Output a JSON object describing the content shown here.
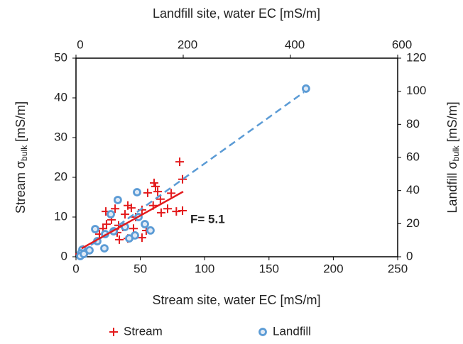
{
  "chart_data": {
    "type": "scatter",
    "xlabel": "Stream site, water EC [mS/m]",
    "x2label": "Landfill site, water EC [mS/m]",
    "ylabel": [
      "Stream σ",
      "bulk",
      " [mS/m]"
    ],
    "y2label": [
      "Landfill σ",
      "bulk",
      " [mS/m]"
    ],
    "xlim": [
      0,
      250
    ],
    "xticks": [
      0,
      50,
      100,
      150,
      200,
      250
    ],
    "x2lim": [
      0,
      600
    ],
    "x2ticks": [
      0,
      200,
      400,
      600
    ],
    "ylim": [
      0,
      50
    ],
    "yticks": [
      0,
      10,
      20,
      30,
      40,
      50
    ],
    "y2lim": [
      0,
      120
    ],
    "y2ticks": [
      0,
      20,
      40,
      60,
      80,
      100,
      120
    ],
    "grid": false,
    "legend": "bottom",
    "series": [
      {
        "name": "Stream",
        "color": "#e31a1c",
        "marker": "plus",
        "x": [
          80.6,
          82.8,
          60.7,
          61.8,
          63.5,
          55.7,
          65.6,
          74,
          60,
          71.2,
          78,
          82.8,
          66.2,
          51.3,
          40.3,
          43,
          38.1,
          46.4,
          23.2,
          30.4,
          27.6,
          23.7,
          33.1,
          36.4,
          44.7,
          54.6,
          51.3,
          33.7,
          40.3,
          32,
          18.2,
          21,
          5.5,
          2.8,
          8.8
        ],
        "values": [
          23.9,
          19.5,
          18.6,
          17.7,
          16.4,
          16.1,
          14.5,
          16,
          12.9,
          12.1,
          11.4,
          11.6,
          11.1,
          11.8,
          12.9,
          12.3,
          10.7,
          10,
          11.4,
          12.1,
          9.3,
          8.2,
          7.9,
          7.5,
          7.1,
          6.6,
          4.8,
          4.3,
          4.6,
          6.1,
          5.7,
          7.1,
          1.8,
          0.7,
          1.4
        ]
      },
      {
        "name": "Landfill",
        "color": "#5b9bd5",
        "marker": "circle",
        "axis": "y2",
        "xaxis": "x2",
        "x": [
          429,
          113.9,
          78,
          65,
          116.6,
          128.5,
          139,
          91.4,
          99.3,
          35.8,
          54.3,
          70.2,
          39.7,
          53,
          25.2,
          11.9,
          9.3,
          8,
          14.6,
          110
        ],
        "values": [
          101.6,
          39,
          34.3,
          25.7,
          24,
          19.7,
          15.9,
          18,
          11.1,
          16.7,
          13.7,
          15.4,
          9.4,
          5.1,
          3.9,
          4.3,
          2.1,
          0.4,
          1.7,
          12.9
        ]
      }
    ],
    "trendlines": [
      {
        "color": "#5b9bd5",
        "dash": true,
        "axis": "y2",
        "xaxis": "x2",
        "x": [
          10.6,
          425
        ],
        "values": [
          3,
          99.4
        ]
      },
      {
        "color": "#e31a1c",
        "dash": false,
        "x": [
          4.4,
          83.3
        ],
        "values": [
          2.1,
          16.4
        ]
      }
    ],
    "annotation": {
      "text": "F= 5.1",
      "color": "#e31a1c"
    }
  }
}
